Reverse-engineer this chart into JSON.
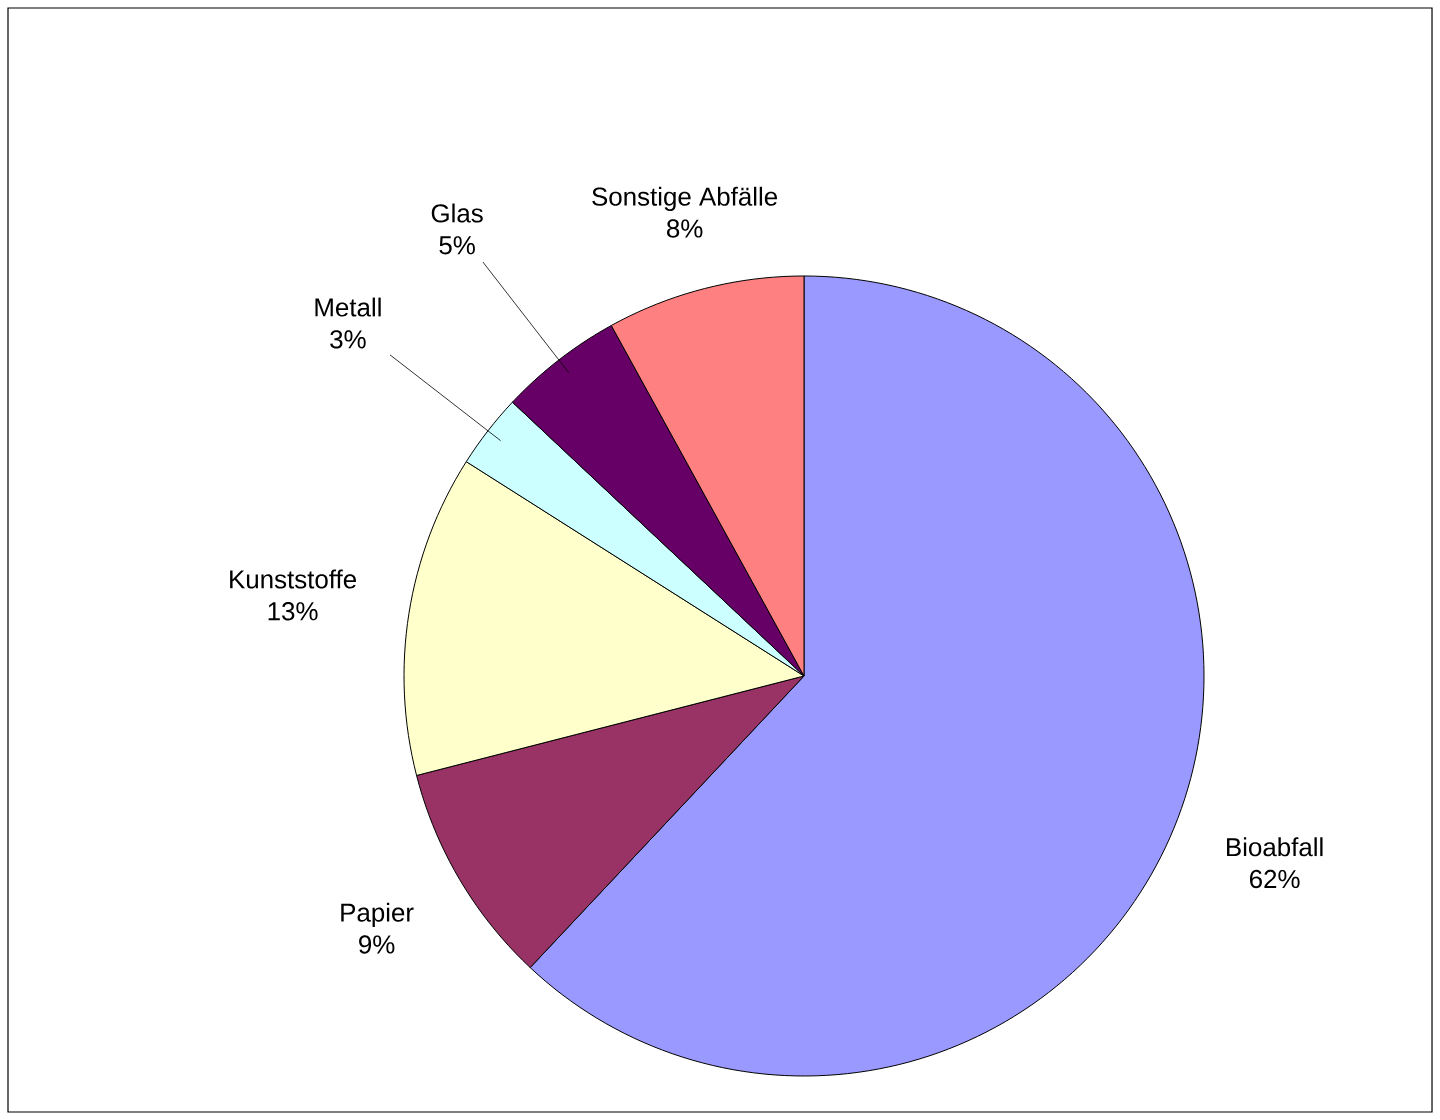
{
  "chart_data": {
    "type": "pie",
    "categories": [
      "Bioabfall",
      "Papier",
      "Kunststoffe",
      "Metall",
      "Glas",
      "Sonstige Abfälle"
    ],
    "values": [
      62,
      9,
      13,
      3,
      5,
      8
    ],
    "value_labels": [
      "62%",
      "9%",
      "13%",
      "3%",
      "5%",
      "8%"
    ],
    "colors": [
      "#9999ff",
      "#993366",
      "#ffffcc",
      "#ccffff",
      "#660066",
      "#ff8080"
    ]
  }
}
